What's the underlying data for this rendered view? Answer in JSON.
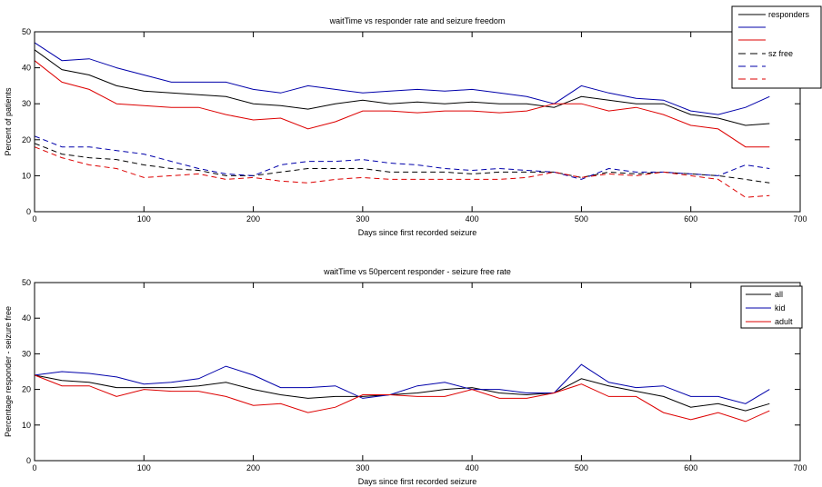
{
  "chart_data": [
    {
      "type": "line",
      "title": "waitTime vs responder rate and seizure freedom",
      "xlabel": "Days since first recorded seizure",
      "ylabel": "Percent of patients",
      "xlim": [
        0,
        700
      ],
      "ylim": [
        0,
        50
      ],
      "xticks": [
        0,
        100,
        200,
        300,
        400,
        500,
        600,
        700
      ],
      "yticks": [
        0,
        10,
        20,
        30,
        40,
        50
      ],
      "grid": false,
      "legend_position": "top-right",
      "x": [
        0,
        25,
        50,
        75,
        100,
        125,
        150,
        175,
        200,
        225,
        250,
        275,
        300,
        325,
        350,
        375,
        400,
        425,
        450,
        475,
        500,
        525,
        550,
        575,
        600,
        625,
        650,
        672
      ],
      "series": [
        {
          "name": "responders",
          "color": "#000000",
          "dash": "solid",
          "values": [
            45,
            39.5,
            38,
            35,
            33.5,
            33,
            32.5,
            32,
            30,
            29.5,
            28.5,
            30,
            31,
            30,
            30.5,
            30,
            30.5,
            30,
            30,
            29,
            32,
            31,
            30,
            30,
            27,
            26,
            24,
            24.5
          ]
        },
        {
          "name": "",
          "color": "#0000aa",
          "dash": "solid",
          "values": [
            47,
            42,
            42.5,
            40,
            38,
            36,
            36,
            36,
            34,
            33,
            35,
            34,
            33,
            33.5,
            34,
            33.5,
            34,
            33,
            32,
            30,
            35,
            33,
            31.5,
            31,
            28,
            27,
            29,
            32
          ]
        },
        {
          "name": "",
          "color": "#dd0000",
          "dash": "solid",
          "values": [
            42,
            36,
            34,
            30,
            29.5,
            29,
            29,
            27,
            25.5,
            26,
            23,
            25,
            28,
            28,
            27.5,
            28,
            28,
            27.5,
            28,
            30,
            30,
            28,
            29,
            27,
            24,
            23,
            18,
            18
          ]
        },
        {
          "name": "sz free",
          "color": "#000000",
          "dash": "dashed",
          "values": [
            19,
            16,
            15,
            14.5,
            13,
            12,
            11.5,
            10,
            10,
            11,
            12,
            12,
            12,
            11,
            11,
            11,
            10.5,
            11,
            11,
            11,
            9.5,
            11,
            10.5,
            11,
            10.5,
            10,
            9,
            8
          ]
        },
        {
          "name": "",
          "color": "#0000aa",
          "dash": "dashed",
          "values": [
            21,
            18,
            18,
            17,
            16,
            14,
            12,
            10.5,
            10,
            13,
            14,
            14,
            14.5,
            13.5,
            13,
            12,
            11.5,
            12,
            11.5,
            11,
            9,
            12,
            11,
            11,
            10.5,
            10,
            13,
            12
          ]
        },
        {
          "name": "",
          "color": "#dd0000",
          "dash": "dashed",
          "values": [
            18,
            15,
            13,
            12,
            9.5,
            10,
            10.5,
            9,
            9.5,
            8.5,
            8,
            9,
            9.5,
            9,
            9,
            9,
            9,
            9,
            9.5,
            11,
            9.5,
            10.5,
            10,
            11,
            10,
            9,
            4,
            4.5
          ]
        }
      ]
    },
    {
      "type": "line",
      "title": "waitTime vs 50percent responder - seizure free rate",
      "xlabel": "Days since first recorded seizure",
      "ylabel": "Percentage responder - seizure free",
      "xlim": [
        0,
        700
      ],
      "ylim": [
        0,
        50
      ],
      "xticks": [
        0,
        100,
        200,
        300,
        400,
        500,
        600,
        700
      ],
      "yticks": [
        0,
        10,
        20,
        30,
        40,
        50
      ],
      "grid": false,
      "legend_position": "top-right",
      "x": [
        0,
        25,
        50,
        75,
        100,
        125,
        150,
        175,
        200,
        225,
        250,
        275,
        300,
        325,
        350,
        375,
        400,
        425,
        450,
        475,
        500,
        525,
        550,
        575,
        600,
        625,
        650,
        672
      ],
      "series": [
        {
          "name": "all",
          "color": "#000000",
          "dash": "solid",
          "values": [
            24,
            22.5,
            22,
            20.5,
            20.5,
            20.5,
            21,
            22,
            20,
            18.5,
            17.5,
            18,
            18,
            18.5,
            19,
            20,
            20.5,
            19,
            18.5,
            19,
            23,
            21,
            19.5,
            18,
            15,
            16,
            14,
            16
          ]
        },
        {
          "name": "kid",
          "color": "#0000aa",
          "dash": "solid",
          "values": [
            24,
            25,
            24.5,
            23.5,
            21.5,
            22,
            23,
            26.5,
            24,
            20.5,
            20.5,
            21,
            17.5,
            18.5,
            21,
            22,
            20,
            20,
            19,
            19,
            27,
            22,
            20.5,
            21,
            18,
            18,
            16,
            20
          ]
        },
        {
          "name": "adult",
          "color": "#dd0000",
          "dash": "solid",
          "values": [
            24,
            21,
            21,
            18,
            20,
            19.5,
            19.5,
            18,
            15.5,
            16,
            13.5,
            15,
            18.5,
            18.5,
            18,
            18,
            20,
            17.5,
            17.5,
            19,
            21.5,
            18,
            18,
            13.5,
            11.5,
            13.5,
            11,
            14
          ]
        }
      ]
    }
  ]
}
